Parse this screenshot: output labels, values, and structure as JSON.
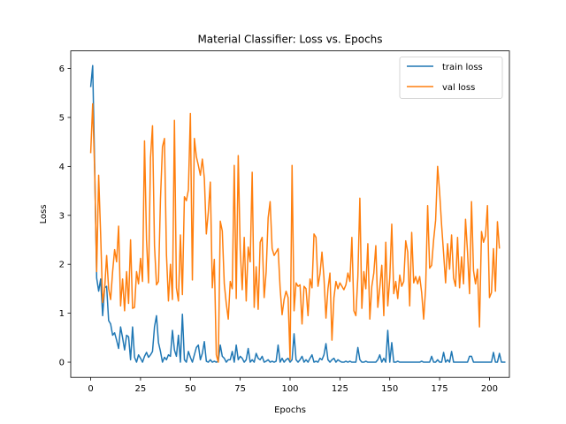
{
  "chart_data": {
    "type": "line",
    "title": "Material Classifier: Loss vs. Epochs",
    "xlabel": "Epochs",
    "ylabel": "Loss",
    "xlim": [
      -10,
      210
    ],
    "ylim": [
      -0.31,
      6.36
    ],
    "xticks": [
      0,
      25,
      50,
      75,
      100,
      125,
      150,
      175,
      200
    ],
    "yticks": [
      0,
      1,
      2,
      3,
      4,
      5,
      6
    ],
    "grid": false,
    "legend_position": "top-right",
    "series": [
      {
        "name": "train loss",
        "color": "#1f77b4",
        "values": [
          5.62,
          6.06,
          4.0,
          1.72,
          1.45,
          1.7,
          0.95,
          1.52,
          1.55,
          0.85,
          0.78,
          0.55,
          0.6,
          0.45,
          0.28,
          0.72,
          0.5,
          0.25,
          0.55,
          0.52,
          0.05,
          0.72,
          0.1,
          0.0,
          0.15,
          0.08,
          0.0,
          0.12,
          0.2,
          0.1,
          0.15,
          0.22,
          0.72,
          0.95,
          0.4,
          0.22,
          0.0,
          0.1,
          0.05,
          0.15,
          0.12,
          0.65,
          0.25,
          0.12,
          0.55,
          0.0,
          0.98,
          0.05,
          0.0,
          0.22,
          0.1,
          0.0,
          0.15,
          0.3,
          0.35,
          0.05,
          0.18,
          0.42,
          0.02,
          0.0,
          0.05,
          0.0,
          0.02,
          0.0,
          0.02,
          0.35,
          0.12,
          0.08,
          0.0,
          0.05,
          0.05,
          0.22,
          0.0,
          0.35,
          0.05,
          0.12,
          0.08,
          0.0,
          0.05,
          0.28,
          0.0,
          0.05,
          0.0,
          0.18,
          0.08,
          0.05,
          0.12,
          0.0,
          0.02,
          0.05,
          0.0,
          0.02,
          0.0,
          0.02,
          0.35,
          0.0,
          0.08,
          0.0,
          0.05,
          0.08,
          0.0,
          0.05,
          0.58,
          0.05,
          0.0,
          0.05,
          0.12,
          0.0,
          0.05,
          0.0,
          0.08,
          0.15,
          0.0,
          0.02,
          0.0,
          0.08,
          0.05,
          0.15,
          0.38,
          0.05,
          0.0,
          0.05,
          0.08,
          0.0,
          0.05,
          0.02,
          0.0,
          0.0,
          0.02,
          0.0,
          0.02,
          0.0,
          0.0,
          0.0,
          0.3,
          0.05,
          0.0,
          0.0,
          0.02,
          0.0,
          0.0,
          0.0,
          0.0,
          0.0,
          0.05,
          0.15,
          0.0,
          0.08,
          0.0,
          0.65,
          0.0,
          0.4,
          0.0,
          0.0,
          0.02,
          0.0,
          0.0,
          0.0,
          0.0,
          0.0,
          0.0,
          0.0,
          0.0,
          0.0,
          0.0,
          0.0,
          0.02,
          0.0,
          0.0,
          0.0,
          0.0,
          0.12,
          0.0,
          0.0,
          0.05,
          0.0,
          0.0,
          0.2,
          0.0,
          0.05,
          0.0,
          0.22,
          0.0,
          0.0,
          0.0,
          0.0,
          0.0,
          0.0,
          0.0,
          0.0,
          0.12,
          0.12,
          0.0,
          0.0,
          0.0,
          0.0,
          0.0,
          0.0,
          0.0,
          0.0,
          0.0,
          0.0,
          0.2,
          0.0,
          0.0,
          0.18,
          0.0,
          0.0,
          0.0
        ]
      },
      {
        "name": "val loss",
        "color": "#ff7f0e",
        "values": [
          4.27,
          5.28,
          3.9,
          1.85,
          3.82,
          2.6,
          1.22,
          1.5,
          2.18,
          1.5,
          1.28,
          1.85,
          2.3,
          2.05,
          2.78,
          1.15,
          1.7,
          1.05,
          1.85,
          1.2,
          2.5,
          1.1,
          1.12,
          1.85,
          1.6,
          2.12,
          1.65,
          4.52,
          2.5,
          1.62,
          4.17,
          4.83,
          2.38,
          1.58,
          1.65,
          3.33,
          4.4,
          4.57,
          2.2,
          1.25,
          2.0,
          1.28,
          4.94,
          1.52,
          1.25,
          2.6,
          1.38,
          3.38,
          3.3,
          3.52,
          5.08,
          1.68,
          4.57,
          4.2,
          4.02,
          3.82,
          4.15,
          3.76,
          2.62,
          3.07,
          3.68,
          1.52,
          2.1,
          0.15,
          0.0,
          2.88,
          2.68,
          1.6,
          1.2,
          0.88,
          1.65,
          1.5,
          4.02,
          1.3,
          4.22,
          2.3,
          1.48,
          2.55,
          1.25,
          2.35,
          2.05,
          3.88,
          1.12,
          1.95,
          1.08,
          2.45,
          2.55,
          1.32,
          1.85,
          2.95,
          3.28,
          2.32,
          2.18,
          2.25,
          2.32,
          1.52,
          0.97,
          1.28,
          1.45,
          1.32,
          0.05,
          4.02,
          1.05,
          1.62,
          1.55,
          1.58,
          0.78,
          1.55,
          1.5,
          0.95,
          1.7,
          1.52,
          2.62,
          2.55,
          1.55,
          1.8,
          2.25,
          1.72,
          0.9,
          1.5,
          1.82,
          0.45,
          1.32,
          1.65,
          1.5,
          1.62,
          1.55,
          1.48,
          1.58,
          1.82,
          1.65,
          2.55,
          1.05,
          0.95,
          1.75,
          3.35,
          1.1,
          1.85,
          1.5,
          2.42,
          0.88,
          1.55,
          1.82,
          2.38,
          1.12,
          1.52,
          1.98,
          0.95,
          2.45,
          1.15,
          1.72,
          2.82,
          1.4,
          1.65,
          1.3,
          1.78,
          1.55,
          1.65,
          2.48,
          2.25,
          1.15,
          2.65,
          1.62,
          1.75,
          1.6,
          1.75,
          1.42,
          0.88,
          1.52,
          3.2,
          1.92,
          1.98,
          2.5,
          2.9,
          4.0,
          3.47,
          2.8,
          2.22,
          1.62,
          2.42,
          1.9,
          2.6,
          1.72,
          1.55,
          2.55,
          1.52,
          2.15,
          1.6,
          2.92,
          2.25,
          1.4,
          3.28,
          1.87,
          1.6,
          1.9,
          0.72,
          2.67,
          2.45,
          2.58,
          3.2,
          1.32,
          1.42,
          2.32,
          1.45,
          2.87,
          2.32
        ]
      }
    ]
  }
}
